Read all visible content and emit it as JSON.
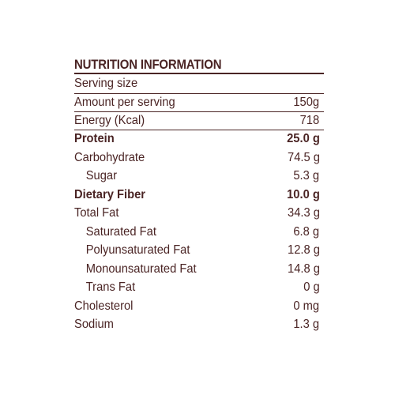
{
  "title": "NUTRITION INFORMATION",
  "serving_size_label": "Serving size",
  "rows": [
    {
      "label": "Amount per serving",
      "value": "150g"
    },
    {
      "label": "Energy (Kcal)",
      "value": "718"
    },
    {
      "label": "Protein",
      "value": "25.0 g"
    },
    {
      "label": "Carbohydrate",
      "value": "74.5 g"
    },
    {
      "label": "Sugar",
      "value": "5.3 g"
    },
    {
      "label": "Dietary Fiber",
      "value": "10.0 g"
    },
    {
      "label": "Total Fat",
      "value": "34.3 g"
    },
    {
      "label": "Saturated Fat",
      "value": "6.8 g"
    },
    {
      "label": "Polyunsaturated Fat",
      "value": "12.8 g"
    },
    {
      "label": "Monounsaturated Fat",
      "value": "14.8 g"
    },
    {
      "label": "Trans Fat",
      "value": "0 g"
    },
    {
      "label": "Cholesterol",
      "value": "0 mg"
    },
    {
      "label": "Sodium",
      "value": "1.3 g"
    }
  ],
  "colors": {
    "text": "#4a2424",
    "background": "#ffffff"
  }
}
